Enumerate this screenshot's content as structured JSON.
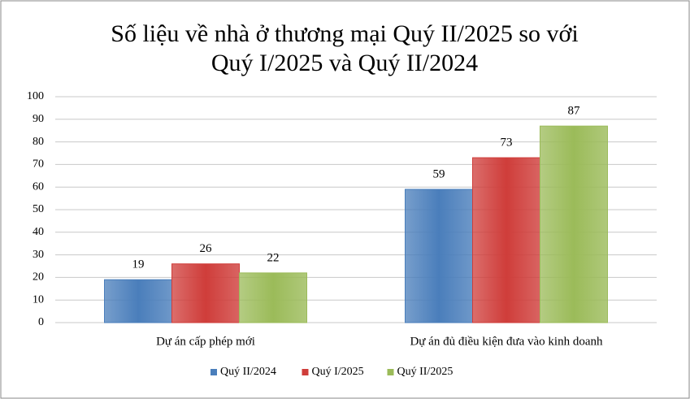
{
  "chart_data": {
    "type": "bar",
    "title": [
      "Số liệu về nhà ở thương mại Quý II/2025 so với",
      "Quý I/2025 và Quý II/2024"
    ],
    "categories": [
      "Dự án cấp phép mới",
      "Dự án đủ điều kiện đưa vào kinh doanh"
    ],
    "series": [
      {
        "name": "Quý II/2024",
        "color": "#4a7ebb",
        "values": [
          19,
          59
        ]
      },
      {
        "name": "Quý I/2025",
        "color": "#cf3d3a",
        "values": [
          26,
          73
        ]
      },
      {
        "name": "Quý II/2025",
        "color": "#9bbb59",
        "values": [
          22,
          87
        ]
      }
    ],
    "ylim": [
      0,
      100
    ],
    "yticks": [
      0,
      10,
      20,
      30,
      40,
      50,
      60,
      70,
      80,
      90,
      100
    ],
    "grid": true,
    "legend": "bottom"
  }
}
